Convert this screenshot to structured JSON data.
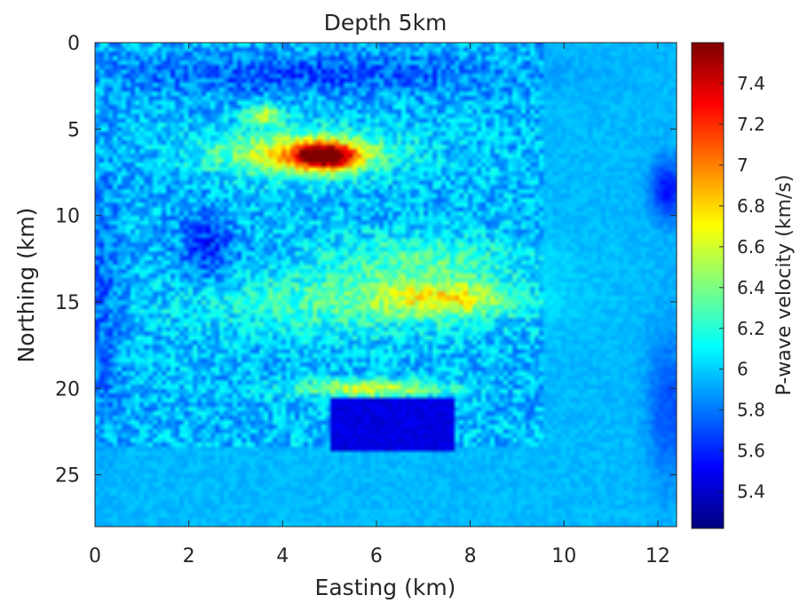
{
  "chart_data": {
    "type": "heatmap",
    "title": "Depth 5km",
    "xlabel": "Easting (km)",
    "ylabel": "Northing (km)",
    "colorbar_label": "P-wave velocity (km/s)",
    "xlim": [
      0,
      12.4
    ],
    "ylim": [
      0,
      28
    ],
    "y_axis_direction": "reversed",
    "x_ticks": [
      0,
      2,
      4,
      6,
      8,
      10,
      12
    ],
    "x_tick_labels": [
      "0",
      "2",
      "4",
      "6",
      "8",
      "10",
      "12"
    ],
    "y_ticks": [
      0,
      5,
      10,
      15,
      20,
      25
    ],
    "y_tick_labels": [
      "0",
      "5",
      "10",
      "15",
      "20",
      "25"
    ],
    "colorbar_range": [
      5.22,
      7.6
    ],
    "colorbar_ticks": [
      5.4,
      5.6,
      5.8,
      6,
      6.2,
      6.4,
      6.6,
      6.8,
      7,
      7.2,
      7.4
    ],
    "colorbar_tick_labels": [
      "5.4",
      "5.6",
      "5.8",
      "6",
      "6.2",
      "6.4",
      "6.6",
      "6.8",
      "7",
      "7.2",
      "7.4"
    ],
    "colormap": "jet",
    "background_value": 5.95,
    "features": [
      {
        "kind": "high",
        "x": 4.9,
        "y": 6.6,
        "sx": 0.45,
        "sy": 0.5,
        "value": 7.5
      },
      {
        "kind": "high",
        "x": 4.4,
        "y": 6.4,
        "sx": 1.3,
        "sy": 0.9,
        "value": 6.75
      },
      {
        "kind": "high",
        "x": 3.6,
        "y": 4.2,
        "sx": 0.3,
        "sy": 0.4,
        "value": 6.55
      },
      {
        "kind": "high",
        "x": 7.5,
        "y": 14.8,
        "sx": 0.9,
        "sy": 0.7,
        "value": 6.55
      },
      {
        "kind": "high",
        "x": 5.5,
        "y": 15.0,
        "sx": 2.2,
        "sy": 1.3,
        "value": 6.3
      },
      {
        "kind": "high",
        "x": 5.8,
        "y": 20.0,
        "sx": 1.1,
        "sy": 0.35,
        "value": 6.65
      },
      {
        "kind": "high",
        "x": 7.0,
        "y": 12.5,
        "sx": 1.5,
        "sy": 1.0,
        "value": 6.25
      },
      {
        "kind": "low",
        "x": 2.4,
        "y": 11.8,
        "sx": 0.4,
        "sy": 1.4,
        "value": 5.6
      },
      {
        "kind": "low",
        "x": 4.5,
        "y": 1.8,
        "sx": 3.0,
        "sy": 0.8,
        "value": 5.7
      },
      {
        "kind": "low",
        "x": 0.2,
        "y": 15.0,
        "sx": 0.25,
        "sy": 5.0,
        "value": 5.75
      },
      {
        "kind": "low",
        "x": 12.2,
        "y": 8.5,
        "sx": 0.25,
        "sy": 1.2,
        "value": 5.55
      },
      {
        "kind": "low",
        "x": 12.2,
        "y": 21.0,
        "sx": 0.3,
        "sy": 3.0,
        "value": 5.7
      },
      {
        "kind": "low_box",
        "x0": 5.0,
        "x1": 7.65,
        "y0": 20.5,
        "y1": 23.7,
        "value": 5.45
      }
    ]
  }
}
